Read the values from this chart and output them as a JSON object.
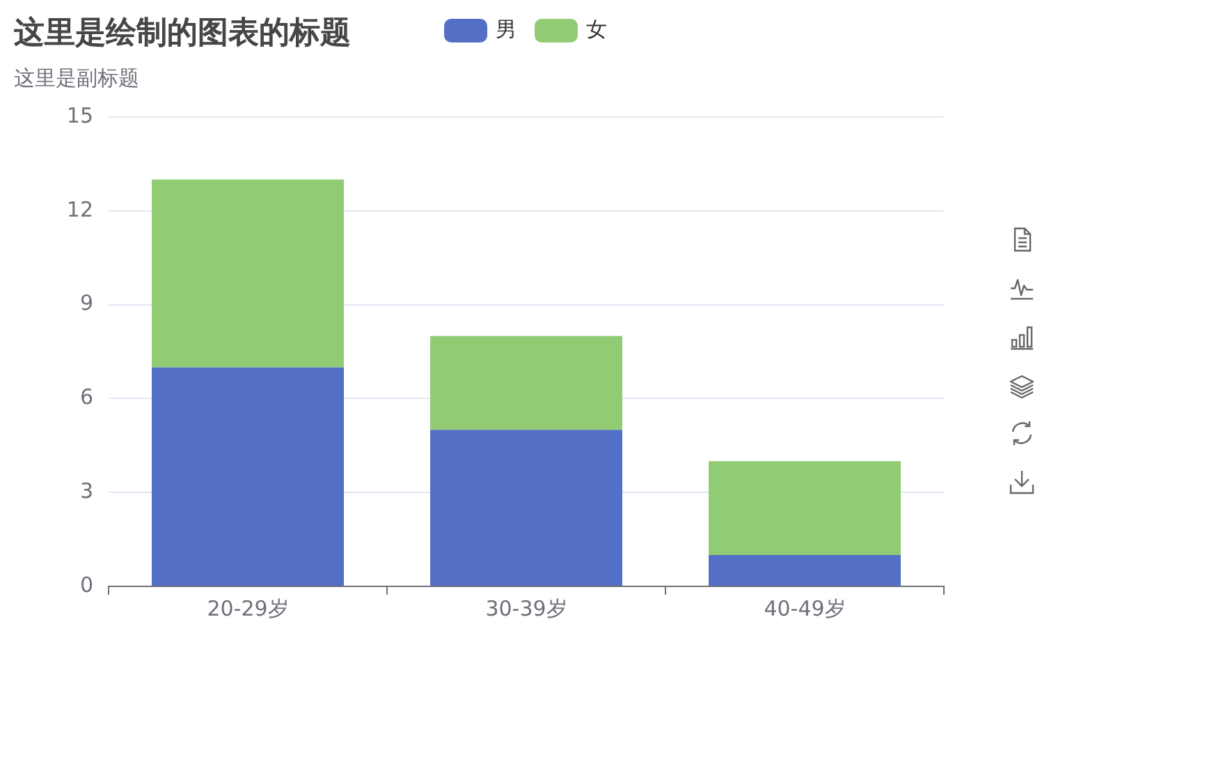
{
  "chart_data": {
    "type": "bar",
    "title": "这里是绘制的图表的标题",
    "subtitle": "这里是副标题",
    "categories": [
      "20-29岁",
      "30-39岁",
      "40-49岁"
    ],
    "series": [
      {
        "name": "男",
        "color": "#5470c6",
        "values": [
          7,
          5,
          1
        ]
      },
      {
        "name": "女",
        "color": "#91cc75",
        "values": [
          6,
          3,
          3
        ]
      }
    ],
    "stacked": true,
    "ylim": [
      0,
      15
    ],
    "yticks": [
      0,
      3,
      6,
      9,
      12,
      15
    ],
    "grid": "y",
    "legend": "top"
  }
}
